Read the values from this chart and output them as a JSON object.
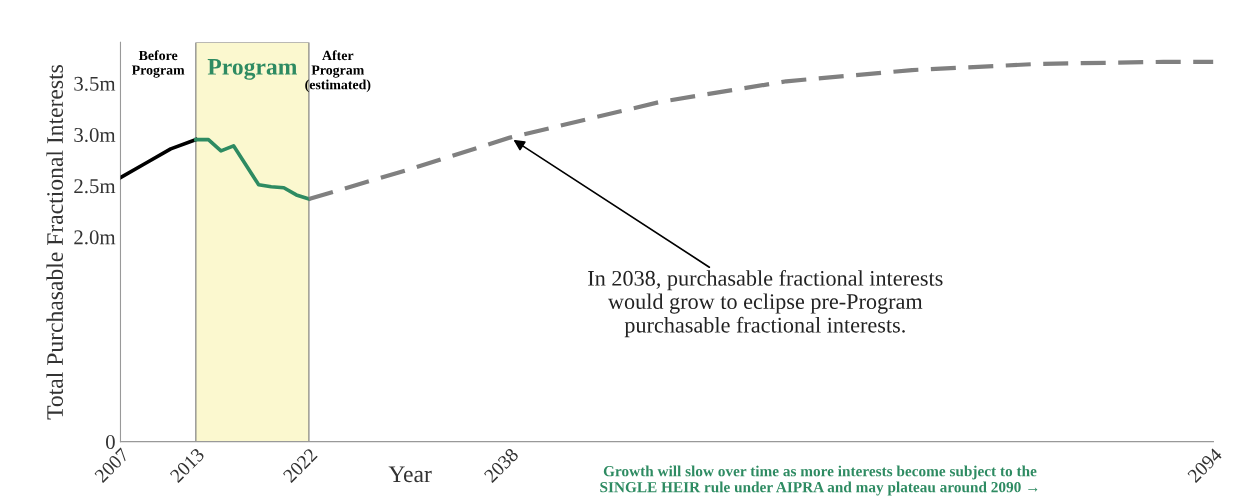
{
  "chart_data": {
    "type": "line",
    "xlabel": "Year",
    "ylabel": "Total Purchasable Fractional Interests",
    "xlim": [
      2007,
      2094
    ],
    "xticks": [
      2007,
      2013,
      2022,
      2038,
      2094
    ],
    "ylim": [
      0,
      3.9
    ],
    "yticks": [
      0,
      {
        "value": 2.0,
        "label": "2.0m"
      },
      {
        "value": 2.5,
        "label": "2.5m"
      },
      {
        "value": 3.0,
        "label": "3.0m"
      },
      {
        "value": 3.5,
        "label": "3.5m"
      }
    ],
    "grid": false,
    "marker": "none",
    "series": [
      {
        "color": "#000000",
        "line_style": "solid",
        "x": [
          2007,
          2009,
          2011,
          2013
        ],
        "values": [
          2.58,
          2.72,
          2.86,
          2.95
        ]
      },
      {
        "color": "#2e8b62",
        "line_style": "solid",
        "x": [
          2013,
          2014,
          2015,
          2016,
          2017,
          2018,
          2019,
          2020,
          2021,
          2022
        ],
        "values": [
          2.95,
          2.95,
          2.84,
          2.89,
          2.7,
          2.51,
          2.49,
          2.48,
          2.41,
          2.37
        ]
      },
      {
        "color": "#808080",
        "line_style": "dashed",
        "x": [
          2022,
          2030,
          2038,
          2050,
          2060,
          2070,
          2080,
          2090,
          2094
        ],
        "values": [
          2.37,
          2.66,
          2.97,
          3.32,
          3.52,
          3.63,
          3.69,
          3.71,
          3.71
        ]
      }
    ],
    "bands": [
      {
        "axis": "x",
        "from": 2013,
        "to": 2022,
        "label": "Program",
        "color": "#fbf8cf"
      }
    ],
    "annotations": [
      "Before\nProgram",
      "After\nProgram\n(estimated)",
      {
        "text": "In 2038, purchasable fractional interests\nwould grow to eclipse pre-Program\npurchasable fractional interests.",
        "x": 2038,
        "y": 2.97
      },
      "Growth will slow over time as more interests become subject to the\nSINGLE HEIR rule under AIPRA and may plateau around 2090 →"
    ]
  }
}
